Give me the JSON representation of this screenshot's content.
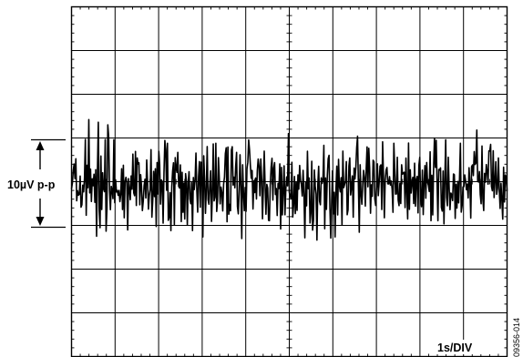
{
  "chart_data": {
    "type": "line",
    "title": "",
    "xlabel": "",
    "ylabel": "",
    "grid": true,
    "x_divisions": 10,
    "y_divisions": 8,
    "x_units_per_div": 1,
    "y_units_per_div": 2.5,
    "xlim": [
      0,
      10
    ],
    "ylim": [
      -10,
      10
    ],
    "annotations": {
      "amplitude": "10µV p-p",
      "timebase": "1s/DIV",
      "figure_id": "09356-014"
    },
    "series": [
      {
        "values": [
          -0.42,
          -0.08,
          0.64,
          1.01,
          0.18,
          1.31,
          -1.09,
          -0.52,
          -0.77,
          -0.72,
          0.32,
          -1.46,
          -1.32,
          -0.2,
          -0.58,
          0.19,
          2.42,
          -1.92,
          0.94,
          -0.34,
          3.55,
          -0.64,
          0.72,
          -1.13,
          0.17,
          -0.23,
          0.43,
          -1.18,
          0.69,
          -3.12,
          0.66,
          3.4,
          -1.6,
          -2.63,
          1.47,
          -1.59,
          0.51,
          -0.4,
          -0.57,
          2.41,
          -2.83,
          -1.55,
          3.25,
          2.57,
          -0.53,
          -1.6,
          -0.27,
          -0.52,
          -0.97,
          2.4,
          -1.2,
          0.11,
          -0.59,
          -0.5,
          -0.78,
          -0.5,
          -1.14,
          -0.71,
          0.74,
          -1.59,
          0.94,
          -2.06,
          0.02,
          0.25,
          -0.06,
          -2.76,
          0.18,
          -0.45,
          -1.03,
          0.33,
          -0.43,
          1.58,
          -0.64,
          -0.8,
          1.73,
          -1.36,
          1.36,
          1.01,
          1.08,
          -1.32,
          0.4,
          -0.25,
          -1.65,
          -1.11,
          -0.22,
          0.14,
          -0.93,
          1.24,
          -0.05,
          -1.57,
          -0.8,
          -0.42,
          1.83,
          -2.03,
          -1.06,
          0.59,
          -0.85,
          0.74,
          -2.56,
          1.1,
          -0.7,
          1.74,
          0.98,
          -1.28,
          0.1,
          0.01,
          -2.37,
          0.52,
          2.36,
          1.84,
          -0.49,
          2.2,
          -2.21,
          -2.05,
          -0.63,
          -2.8,
          -0.29,
          0.61,
          1.08,
          -2.48,
          1.38,
          0.8,
          0.53,
          1.68,
          -0.26,
          -0.36,
          0.96,
          -2.28,
          0.54,
          -1.75,
          -0.08,
          -2.13,
          0.46,
          0.02,
          -2.47,
          -0.07,
          0.57,
          -0.99,
          -1.26,
          -0.06,
          -2.8,
          0.24,
          -0.45,
          0.1,
          1.64,
          -0.51,
          -1.74,
          0.29,
          1.15,
          -1.46,
          1.12,
          0.37,
          -3.16,
          1.48,
          0.14,
          -1.81,
          -0.44,
          2.01,
          -1.02,
          -1.29,
          -0.17,
          0.62,
          -2.27,
          -0.75,
          2.16,
          -1.1,
          -0.88,
          2.2,
          -1.7,
          -1.08,
          1.38,
          0.19,
          -1.27,
          -0.31,
          -0.62,
          -1.67,
          -0.14,
          0.26,
          1.6,
          1.94,
          -2.29,
          1.98,
          -1.86,
          -1.3,
          -1.66,
          1.8,
          2.0,
          -0.19,
          0.26,
          -0.35,
          0.91,
          1.68,
          -1.42,
          -1.84,
          -0.44,
          1.54,
          -0.31,
          -3.25,
          0.97,
          -0.62,
          -1.66,
          -0.33,
          -1.69,
          0.73,
          1.11,
          2.39,
          1.81,
          0.9,
          0.2,
          0.64,
          -1.56,
          0.04,
          -0.62,
          0.21,
          -0.99,
          0.64,
          1.29,
          0.87,
          -0.8,
          1.3,
          0.21,
          -2.12,
          -0.35,
          1.75,
          -0.21,
          -1.86,
          -0.15,
          -0.36,
          -2.21,
          -2.23,
          -0.17,
          0.84,
          1.34,
          -1.05,
          0.78,
          1.09,
          -0.73,
          -0.39,
          -1.93,
          -0.1,
          -0.39,
          1.02,
          -2.7,
          0.82,
          -1.9,
          -0.52,
          0.91,
          -1.89,
          -0.42,
          0.27,
          -0.24,
          2.75,
          -0.61,
          -0.86,
          -0.96,
          1.11,
          -2.02,
          -1.33,
          0.3,
          -1.82,
          -0.02,
          -1.64,
          0.39,
          -0.43,
          0.93,
          0.09,
          -0.16,
          -0.82,
          0.65,
          -0.71,
          -3.21,
          -0.02,
          -1.38,
          1.74,
          -0.4,
          0.21,
          -2.36,
          -1.79,
          1.17,
          -2.77,
          -2.19,
          0.67,
          -0.27,
          -0.7,
          -3.34,
          -0.17,
          0.88,
          -1.11,
          -1.32,
          0.22,
          -0.1,
          0.17,
          2.08,
          -2.69,
          0.21,
          -1.58,
          0.35,
          1.31,
          1.51,
          -1.52,
          -3.22,
          -1.19,
          0.62,
          -1.84,
          -0.61,
          -3.16,
          -0.45,
          0.89,
          -1.9,
          1.28,
          -0.24,
          -0.58,
          0.23,
          -2.47,
          1.75,
          -0.34,
          -0.16,
          0.01,
          1.15,
          -1.89,
          -1.61,
          0.89,
          1.36,
          -0.76,
          -0.26,
          0.33,
          -2.03,
          0.78,
          0.16,
          0.81,
          1.95,
          2.6,
          -0.19,
          -2.89,
          0.97,
          -0.68,
          -1.29,
          -0.14,
          0.65,
          0.25,
          -1.39,
          0.73,
          1.99,
          -0.29,
          1.91,
          0.78,
          -1.8,
          -0.18,
          -0.84,
          1.23,
          1.13,
          -1.0,
          -1.36,
          -0.3,
          1.02,
          -0.8,
          -0.05,
          0.88,
          0.96,
          -1.59,
          2.28,
          0.34,
          -2.06,
          0.11,
          0.65,
          0.81,
          -0.12,
          -0.13,
          0.29,
          -0.19,
          0.04,
          -0.43,
          -1.75,
          2.2,
          0.75,
          -0.71,
          -0.7,
          1.4,
          -1.05,
          -1.37,
          -0.08,
          -1.25,
          0.97,
          0.43,
          0.49,
          0.54,
          -1.48,
          1.35,
          -0.55,
          -2.13,
          2.21,
          -1.58,
          0.68,
          -0.65,
          -0.03,
          0.25,
          -1.25,
          1.06,
          -1.4,
          0.12,
          0.3,
          -1.78,
          0.94,
          1.39,
          -1.01,
          -1.43,
          0.66,
          -1.88,
          -0.07,
          0.92,
          -0.94,
          1.1,
          -0.03,
          -0.21,
          -0.56,
          1.71,
          -2.23,
          0.37,
          -1.9,
          0.79,
          2.5,
          0.82,
          2.37,
          -0.06,
          -2.23,
          0.7,
          0.66,
          0.79,
          -1.47,
          -1.68,
          0.61,
          -2.41,
          0.08,
          2.4,
          -0.91,
          -1.38,
          1.4,
          -0.34,
          -1.6,
          -0.65,
          -0.74,
          -1.08,
          0.44,
          0.4,
          -2.1,
          -0.15,
          -1.51,
          0.02,
          -1.21,
          0.22,
          2.2,
          -1.74,
          -1.36,
          -0.3,
          -0.28,
          0.39,
          0.07,
          -0.46,
          -0.14,
          -0.93,
          0.8,
          -0.06,
          -2.08,
          0.86,
          0.96,
          0.35,
          1.72,
          0.98,
          1.07,
          2.95,
          0.04,
          -0.02,
          0.58,
          -0.74,
          -1.26,
          2.04,
          -0.98,
          -1.65,
          0.47,
          -0.03,
          0.98,
          0.6,
          -0.14,
          1.76,
          1.75,
          2.13,
          -0.27,
          -0.52,
          1.77,
          -0.91,
          0.02,
          1.14,
          -0.72,
          -0.37,
          1.36,
          -0.47,
          -1.53,
          -0.09,
          -1.03,
          -2.14,
          0.83,
          -1.16,
          0.38,
          0.26,
          -0.54
        ]
      }
    ]
  }
}
